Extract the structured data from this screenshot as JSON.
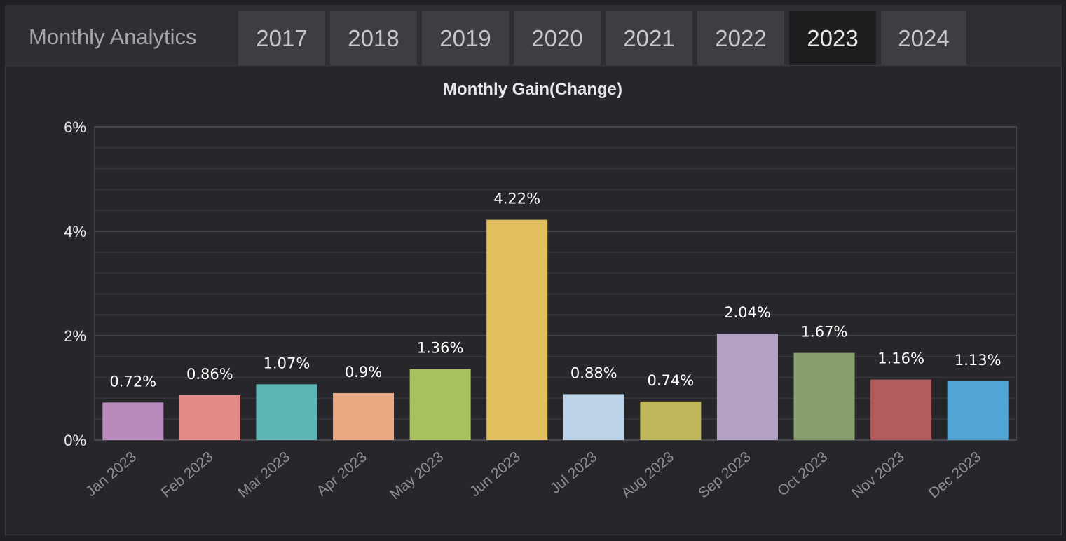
{
  "header": {
    "title": "Monthly Analytics",
    "tabs": [
      {
        "label": "2017",
        "active": false
      },
      {
        "label": "2018",
        "active": false
      },
      {
        "label": "2019",
        "active": false
      },
      {
        "label": "2020",
        "active": false
      },
      {
        "label": "2021",
        "active": false
      },
      {
        "label": "2022",
        "active": false
      },
      {
        "label": "2023",
        "active": true
      },
      {
        "label": "2024",
        "active": false
      }
    ]
  },
  "chart_data": {
    "type": "bar",
    "title": "Monthly Gain(Change)",
    "xlabel": "",
    "ylabel": "",
    "categories": [
      "Jan 2023",
      "Feb 2023",
      "Mar 2023",
      "Apr 2023",
      "May 2023",
      "Jun 2023",
      "Jul 2023",
      "Aug 2023",
      "Sep 2023",
      "Oct 2023",
      "Nov 2023",
      "Dec 2023"
    ],
    "values": [
      0.72,
      0.86,
      1.07,
      0.9,
      1.36,
      4.22,
      0.88,
      0.74,
      2.04,
      1.67,
      1.16,
      1.13
    ],
    "value_labels": [
      "0.72%",
      "0.86%",
      "1.07%",
      "0.9%",
      "1.36%",
      "4.22%",
      "0.88%",
      "0.74%",
      "2.04%",
      "1.67%",
      "1.16%",
      "1.13%"
    ],
    "ylim": [
      0,
      6
    ],
    "yticks": [
      0,
      2,
      4,
      6
    ],
    "ytick_labels": [
      "0%",
      "2%",
      "4%",
      "6%"
    ],
    "grid": true,
    "legend": "none",
    "bar_colors": [
      "#b98bbd",
      "#e58a88",
      "#5cb6b6",
      "#eaa983",
      "#a9c25e",
      "#e3c05f",
      "#bdd3e8",
      "#bfb85a",
      "#b3a0c5",
      "#88a06d",
      "#b35c5e",
      "#51a6d6"
    ]
  }
}
